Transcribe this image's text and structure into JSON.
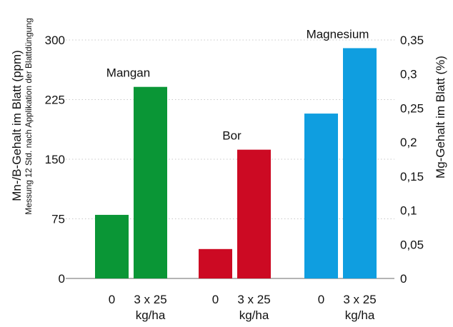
{
  "colors": {
    "mangan": "#0a9636",
    "bor": "#cc0a23",
    "magnesium": "#0f9ee0",
    "grid": "#c8c8c8",
    "axis": "#888888"
  },
  "chart_data": {
    "type": "bar",
    "grid": "horizontal dotted",
    "left_axis": {
      "label": "Mn-/B-Gehalt im Blatt (ppm)",
      "sublabel": "Messung 12 Std. nach Applikation der Blattdüngung",
      "ylim": [
        0,
        300
      ],
      "ticks": [
        "0",
        "75",
        "150",
        "225",
        "300"
      ]
    },
    "right_axis": {
      "label": "Mg-Gehalt im Blatt (%)",
      "ylim": [
        0,
        0.35
      ],
      "ticks": [
        "0",
        "0,05",
        "0,1",
        "0,15",
        "0,2",
        "0,25",
        "0,3",
        "0,35"
      ]
    },
    "groups": [
      {
        "name": "Mangan",
        "axis": "left",
        "color_key": "mangan",
        "categories": [
          "0",
          "3 x 25 kg/ha"
        ],
        "values": [
          80,
          241
        ]
      },
      {
        "name": "Bor",
        "axis": "left",
        "color_key": "bor",
        "categories": [
          "0",
          "3 x 25 kg/ha"
        ],
        "values": [
          37,
          162
        ]
      },
      {
        "name": "Magnesium",
        "axis": "right",
        "color_key": "magnesium",
        "categories": [
          "0",
          "3 x 25 kg/ha"
        ],
        "values": [
          0.242,
          0.338
        ]
      }
    ]
  }
}
